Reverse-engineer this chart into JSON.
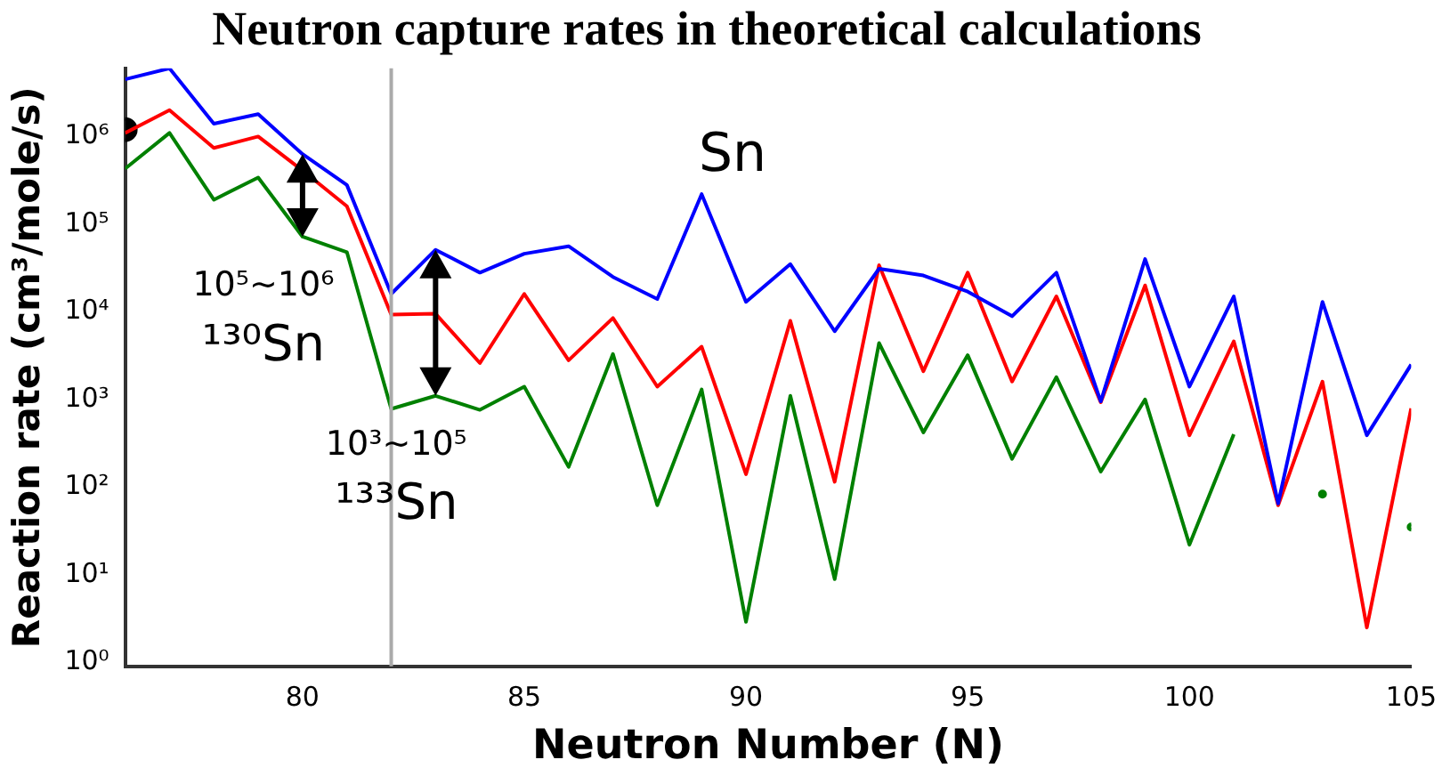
{
  "chart_data": {
    "type": "line",
    "title": "Neutron capture rates in theoretical calculations",
    "xlabel": "Neutron Number (N)",
    "ylabel": "Reaction rate (cm³/mole/s)",
    "x": [
      76,
      77,
      78,
      79,
      80,
      81,
      82,
      83,
      84,
      85,
      86,
      87,
      88,
      89,
      90,
      91,
      92,
      93,
      94,
      95,
      96,
      97,
      98,
      99,
      100,
      101,
      102,
      103,
      104,
      105
    ],
    "series": [
      {
        "color": "#0000ff",
        "values": [
          4500000,
          6000000,
          1400000,
          1800000,
          630000,
          280000,
          16000,
          51000,
          28000,
          46000,
          56000,
          25000,
          14000,
          220000,
          13000,
          35000,
          6000,
          31000,
          26000,
          17000,
          8900,
          28000,
          950,
          40000,
          1400,
          15000,
          65,
          13000,
          390,
          2500
        ]
      },
      {
        "color": "#ff0000",
        "values": [
          1100000,
          2000000,
          740000,
          1000000,
          410000,
          160000,
          9300,
          9500,
          2600,
          16000,
          2800,
          8500,
          1400,
          4000,
          140,
          7900,
          115,
          34000,
          2100,
          28000,
          1600,
          15000,
          930,
          20000,
          390,
          4600,
          62,
          1600,
          2.5,
          790
        ]
      },
      {
        "color": "#008000",
        "values": [
          430000,
          1100000,
          190000,
          340000,
          72000,
          48000,
          780,
          1100,
          760,
          1400,
          170,
          3300,
          62,
          1300,
          2.9,
          1100,
          8.9,
          4400,
          420,
          3200,
          210,
          1800,
          150,
          1000,
          22,
          400,
          null,
          83,
          null,
          35
        ]
      },
      {
        "type": "scatter",
        "color": "#000000",
        "marker": "circle",
        "x": [
          76
        ],
        "values": [
          1200000
        ]
      }
    ],
    "marker": "none",
    "line_style": "solid",
    "log": "y",
    "grid": false,
    "legend": false,
    "xlim": [
      76,
      105
    ],
    "xticks": [
      80,
      85,
      90,
      95,
      100,
      105
    ],
    "ylim": [
      0.9,
      6000000
    ],
    "yticks": [
      {
        "value": 1,
        "label": "10⁰"
      },
      {
        "value": 10,
        "label": "10¹"
      },
      {
        "value": 100,
        "label": "10²"
      },
      {
        "value": 1000,
        "label": "10³"
      },
      {
        "value": 10000,
        "label": "10⁴"
      },
      {
        "value": 100000,
        "label": "10⁵"
      },
      {
        "value": 1000000,
        "label": "10⁶"
      }
    ],
    "ref_lines": [
      {
        "axis": "x",
        "value": 82,
        "color": "#aaaaaa"
      }
    ],
    "annotations": [
      "Sn",
      {
        "text": "10⁵~10⁶\n¹³⁰Sn",
        "x": 80,
        "y": 72000
      },
      {
        "text": "10³~10⁵\n¹³³Sn",
        "x": 83,
        "y": 1100
      }
    ]
  }
}
